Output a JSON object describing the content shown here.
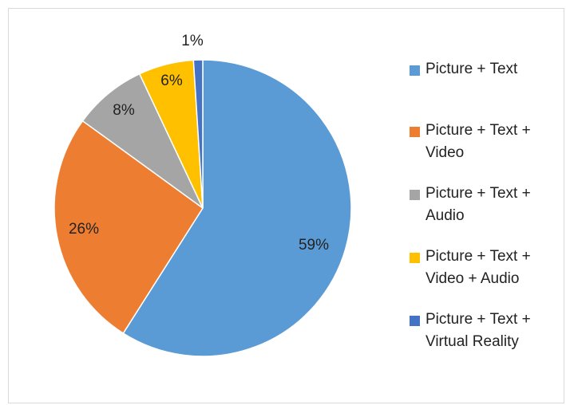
{
  "chart_data": {
    "type": "pie",
    "title": "",
    "categories": [
      "Picture + Text",
      "Picture + Text + Video",
      "Picture + Text + Audio",
      "Picture + Text + Video + Audio",
      "Picture + Text + Virtual Reality"
    ],
    "values": [
      59,
      26,
      8,
      6,
      1
    ],
    "data_labels": [
      "59%",
      "26%",
      "8%",
      "6%",
      "1%"
    ],
    "colors": [
      "#5b9bd5",
      "#ed7d31",
      "#a5a5a5",
      "#ffc000",
      "#4472c4"
    ],
    "legend_position": "right"
  },
  "legend": {
    "items": [
      {
        "line1": "Picture + Text",
        "line2": ""
      },
      {
        "line1": "Picture + Text +",
        "line2": "Video"
      },
      {
        "line1": "Picture + Text +",
        "line2": "Audio"
      },
      {
        "line1": "Picture + Text +",
        "line2": "Video + Audio"
      },
      {
        "line1": "Picture + Text +",
        "line2": "Virtual Reality"
      }
    ]
  }
}
